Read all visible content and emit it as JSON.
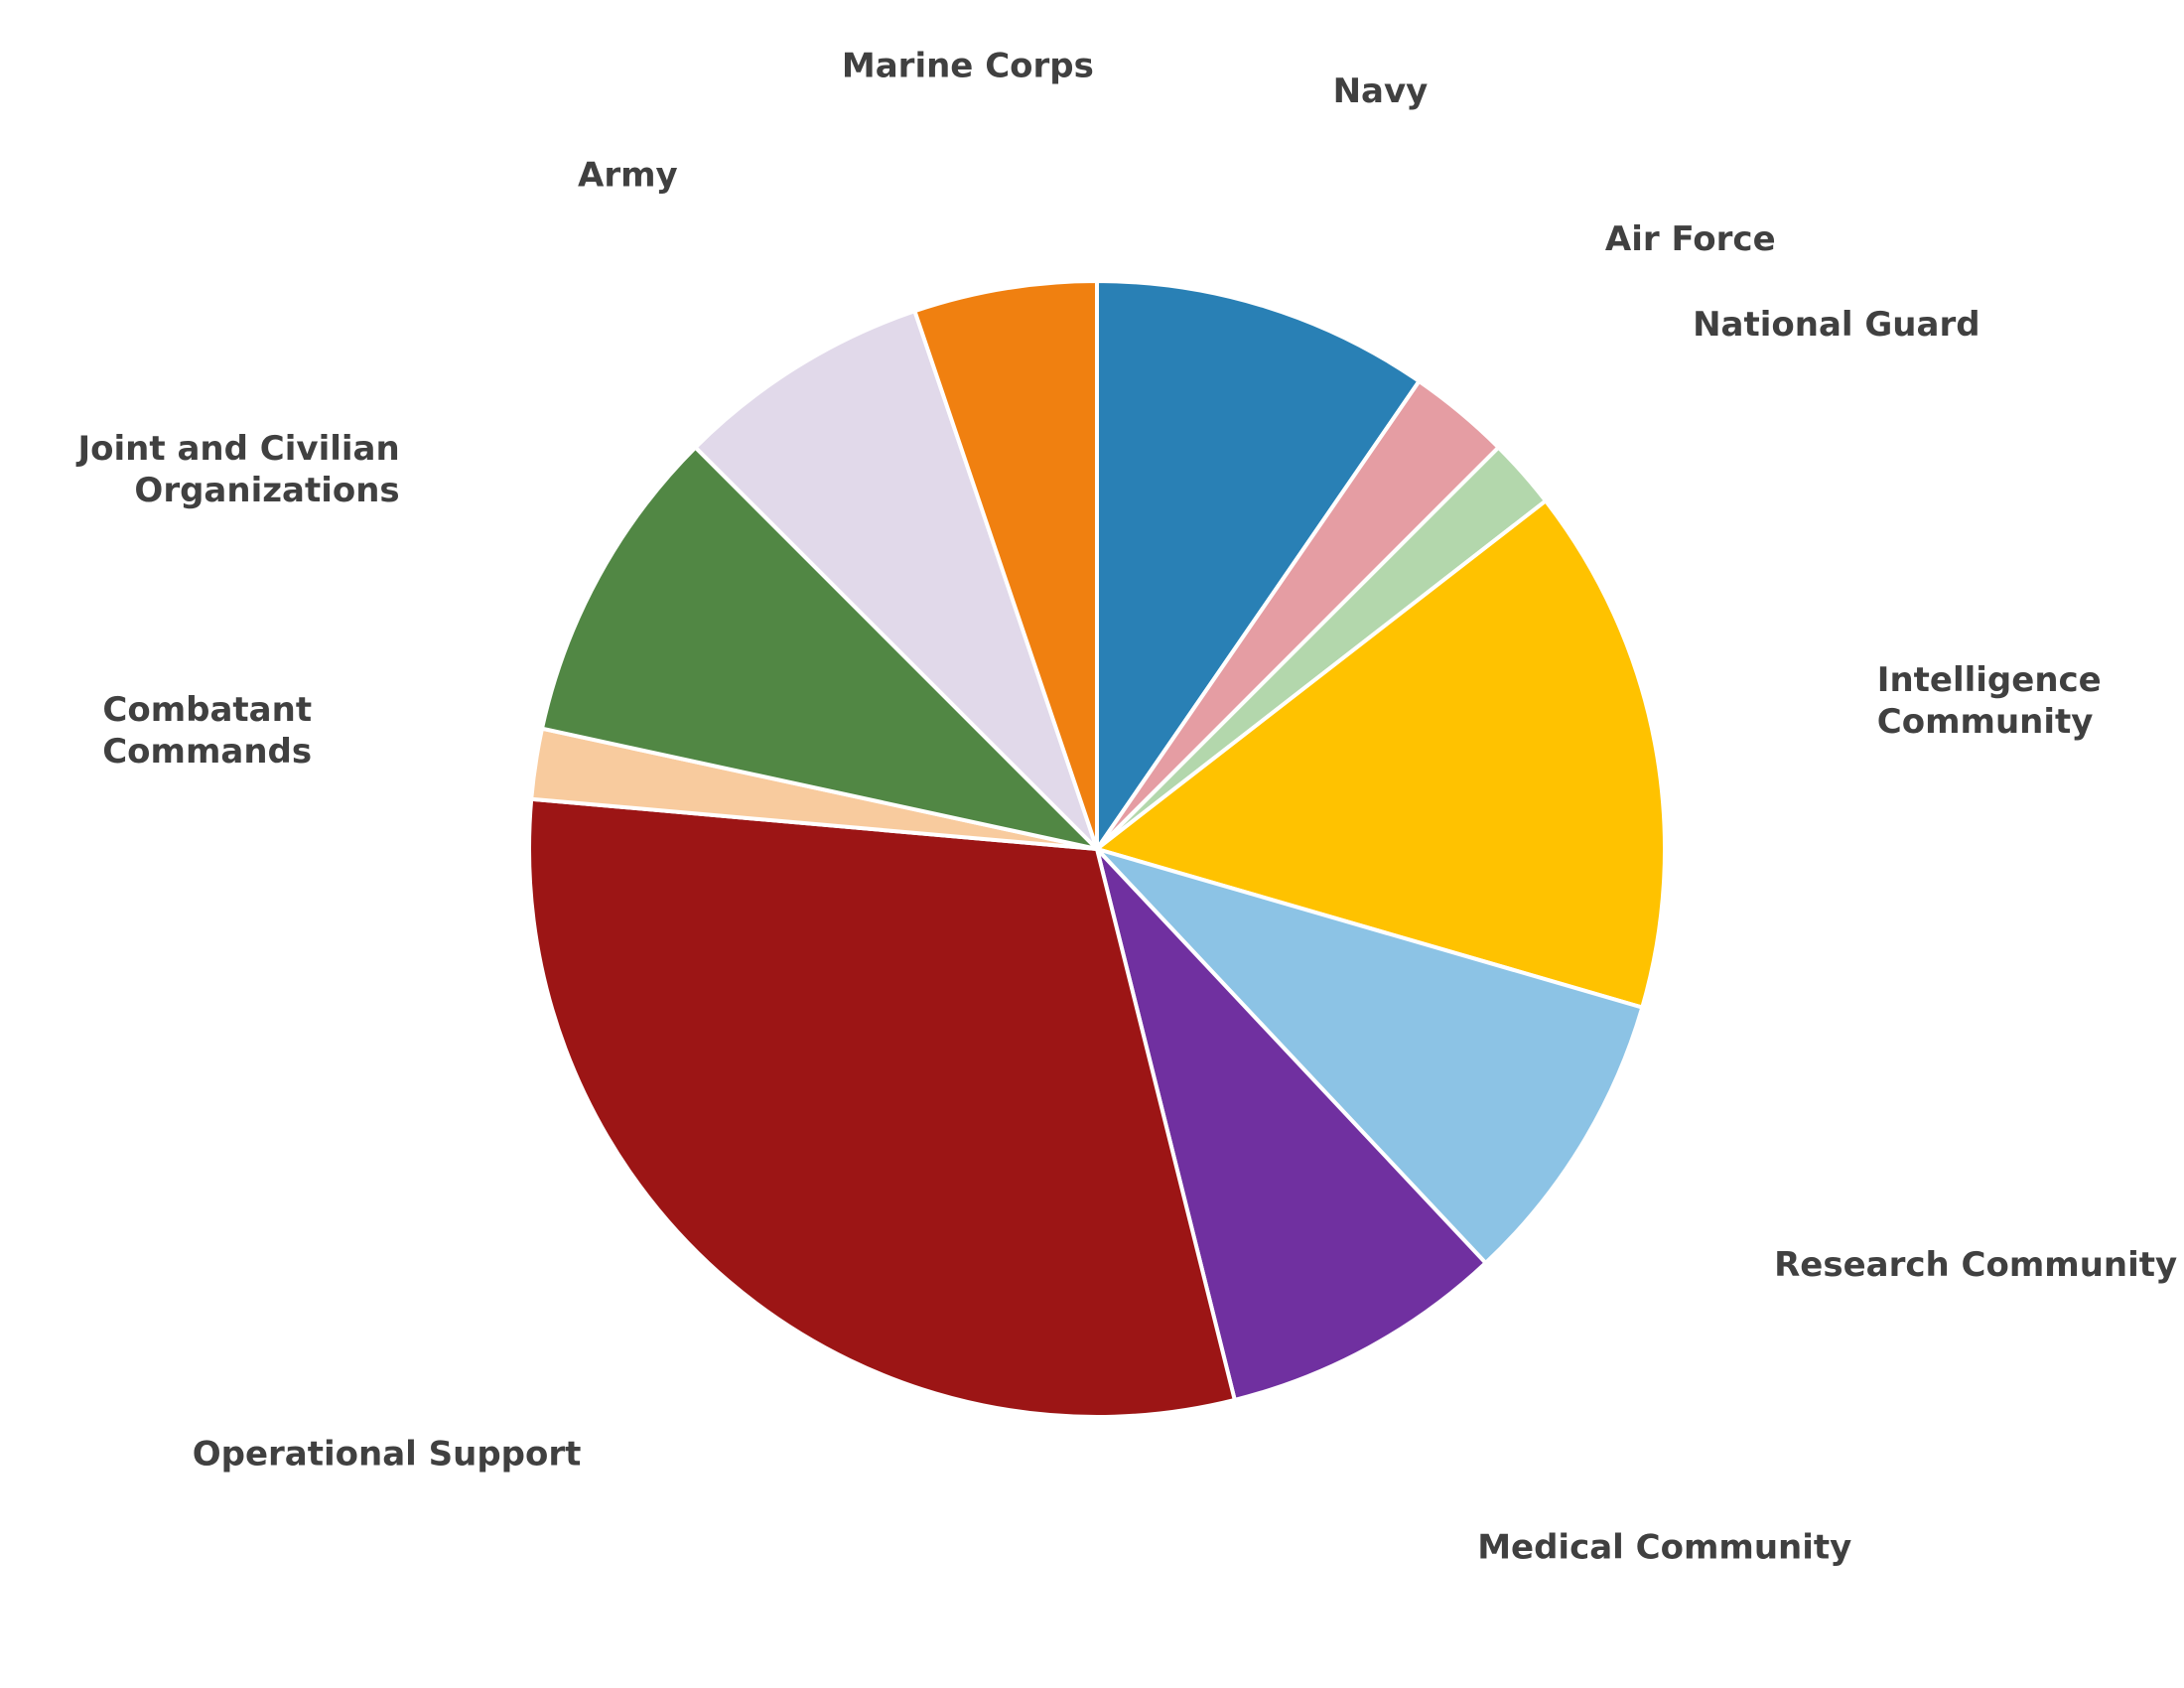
{
  "chart_data": {
    "type": "pie",
    "start_angle_deg": 0,
    "direction": "clockwise",
    "slices": [
      {
        "label": [
          "Navy"
        ],
        "value": 9.6,
        "color": "#2980B5"
      },
      {
        "label": [
          "Air Force"
        ],
        "value": 2.9,
        "color": "#E59DA3"
      },
      {
        "label": [
          "National Guard"
        ],
        "value": 2.0,
        "color": "#B3D7AC"
      },
      {
        "label": [
          "Intelligence",
          "Community"
        ],
        "value": 15.0,
        "color": "#FFC200"
      },
      {
        "label": [
          "Research Community"
        ],
        "value": 8.5,
        "color": "#8CC3E5"
      },
      {
        "label": [
          "Medical Community"
        ],
        "value": 8.1,
        "color": "#7030A0"
      },
      {
        "label": [
          "Operational Support"
        ],
        "value": 30.3,
        "color": "#9C1515"
      },
      {
        "label": [
          "Combatant",
          "Commands"
        ],
        "value": 2.0,
        "color": "#F8CB9E"
      },
      {
        "label": [
          "Joint and Civilian",
          "Organizations"
        ],
        "value": 9.1,
        "color": "#518744"
      },
      {
        "label": [
          "Army"
        ],
        "value": 7.3,
        "color": "#E1D9EA"
      },
      {
        "label": [
          "Marine Corps"
        ],
        "value": 5.2,
        "color": "#F08010"
      }
    ]
  }
}
